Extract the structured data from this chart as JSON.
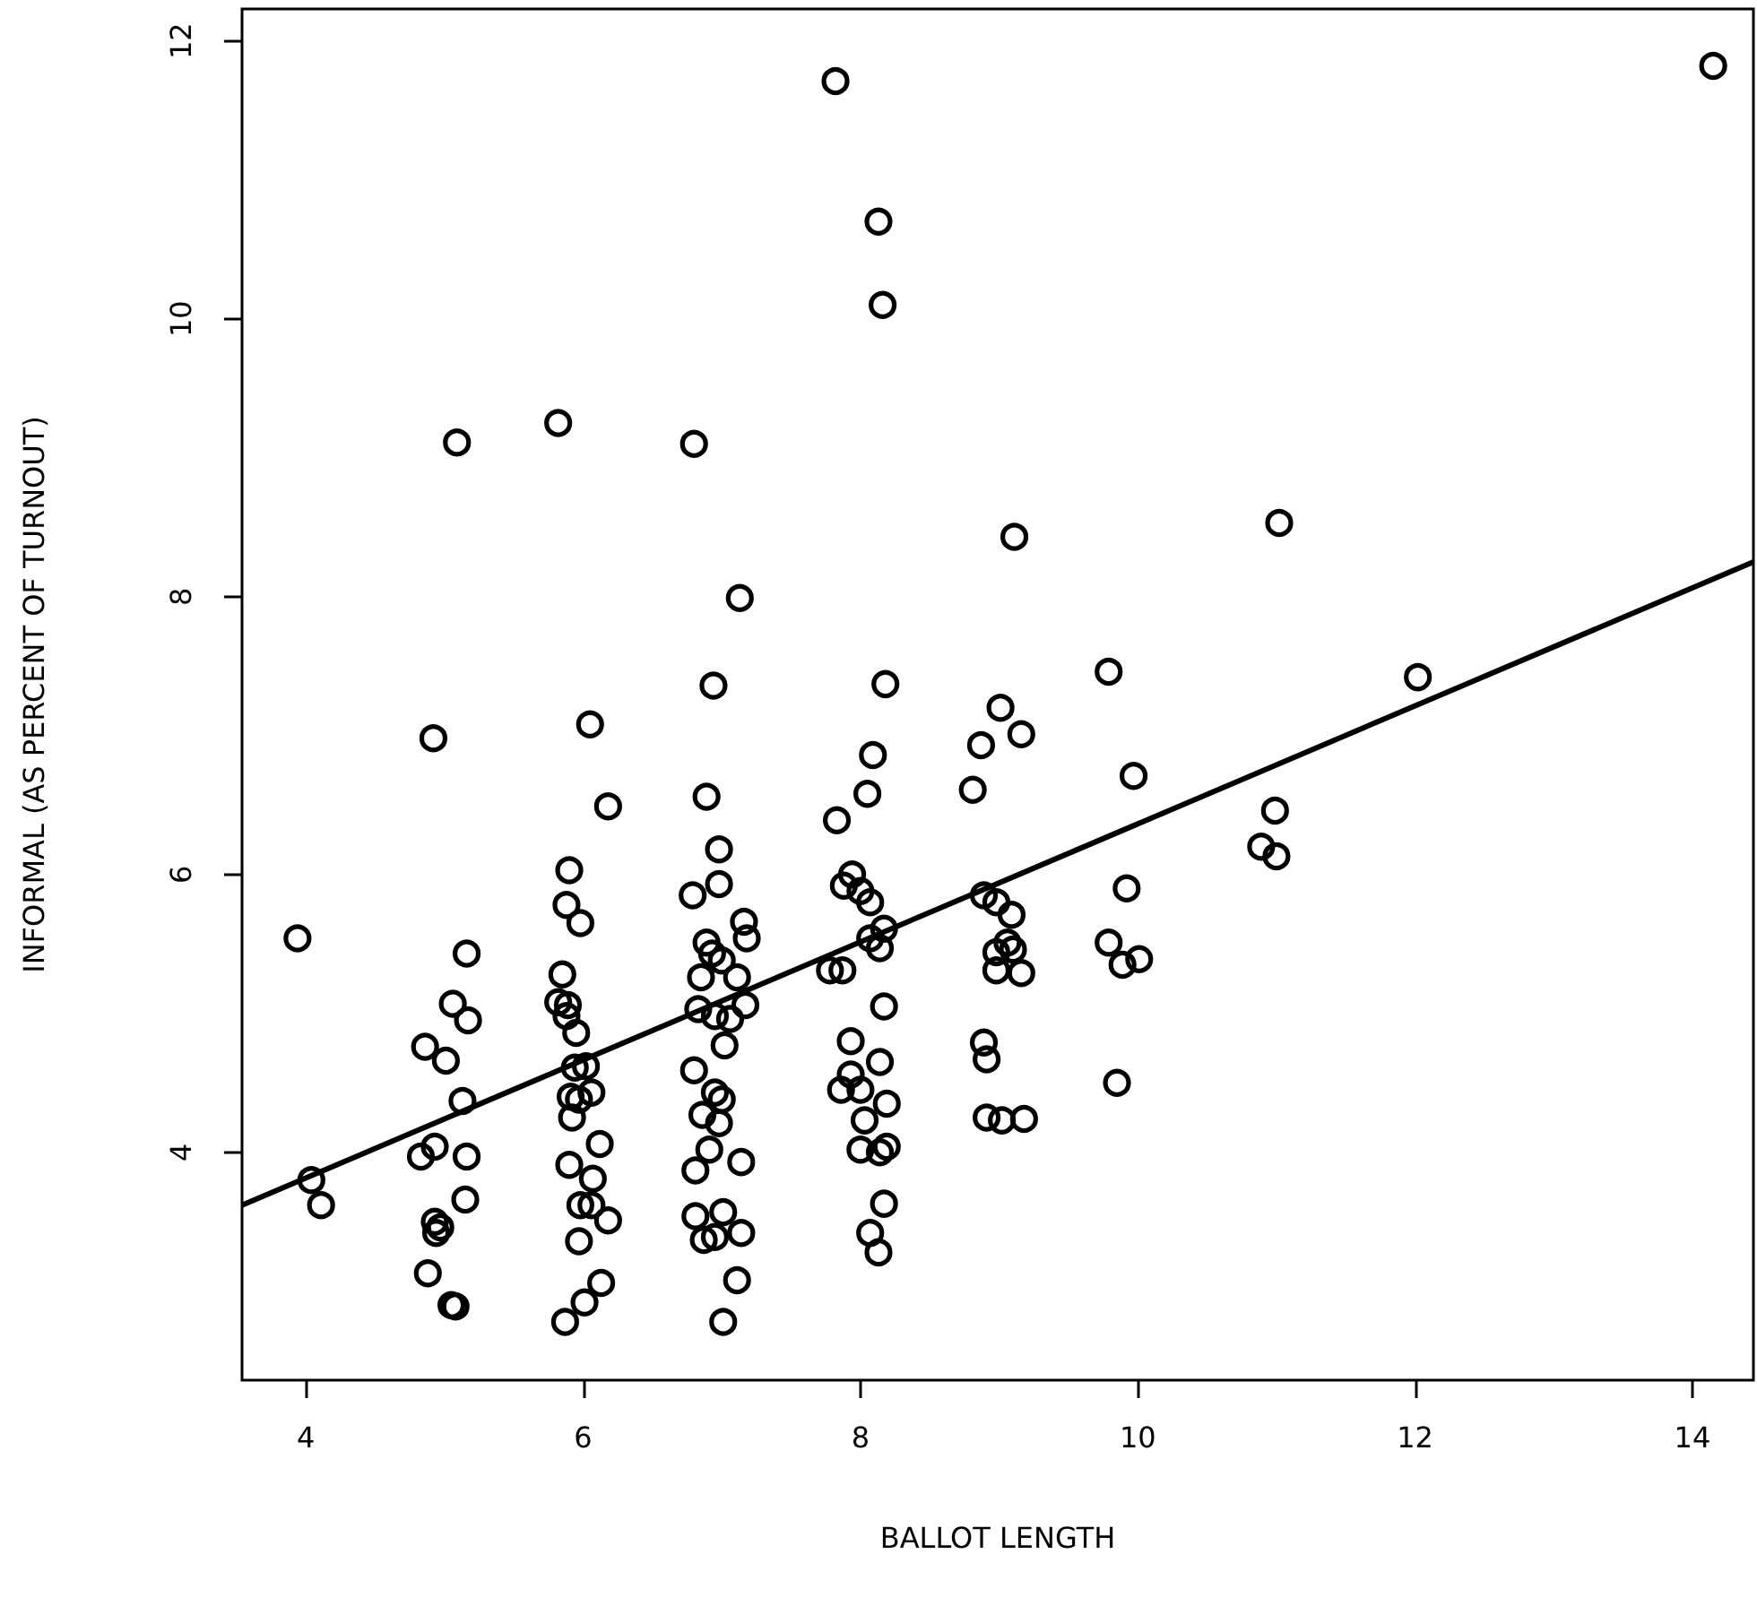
{
  "chart_data": {
    "type": "scatter",
    "xlabel": "BALLOT LENGTH",
    "ylabel": "INFORMAL (AS PERCENT OF TURNOUT)",
    "xlim": [
      3.54,
      14.44
    ],
    "ylim": [
      2.36,
      12.23
    ],
    "xticks": [
      4,
      6,
      8,
      10,
      12,
      14
    ],
    "yticks": [
      4,
      6,
      8,
      10,
      12
    ],
    "grid": false,
    "marker": "circle",
    "series": [
      {
        "color": "#000000",
        "x": [
          3.94,
          4.04,
          4.11,
          5.16,
          5.06,
          5.17,
          4.86,
          5.01,
          5.13,
          4.93,
          4.83,
          5.16,
          5.15,
          4.93,
          4.94,
          4.97,
          4.88,
          5.05,
          5.08,
          4.92,
          5.09,
          5.82,
          6.05,
          6.18,
          5.9,
          5.88,
          5.98,
          5.85,
          5.82,
          5.89,
          5.88,
          5.95,
          5.94,
          6.02,
          5.91,
          6.06,
          5.97,
          5.92,
          6.12,
          5.9,
          6.07,
          5.98,
          6.06,
          6.18,
          5.97,
          6.13,
          6.01,
          5.87,
          6.8,
          7.13,
          6.94,
          6.89,
          6.98,
          6.98,
          6.79,
          7.16,
          7.18,
          6.89,
          6.93,
          7.0,
          6.85,
          7.11,
          6.83,
          7.17,
          6.95,
          7.06,
          7.02,
          6.8,
          6.95,
          7.0,
          6.86,
          6.98,
          6.91,
          6.81,
          7.14,
          6.81,
          7.01,
          6.87,
          6.95,
          7.14,
          7.11,
          7.01,
          7.82,
          8.13,
          8.16,
          8.18,
          8.09,
          8.05,
          7.83,
          7.94,
          7.88,
          8.0,
          8.07,
          8.17,
          8.07,
          8.14,
          7.78,
          7.87,
          8.17,
          7.93,
          8.14,
          7.93,
          7.86,
          8.0,
          8.19,
          8.03,
          8.0,
          8.14,
          8.19,
          8.17,
          8.07,
          8.13,
          9.11,
          9.01,
          8.87,
          9.16,
          8.81,
          8.89,
          8.98,
          9.09,
          9.06,
          8.98,
          9.1,
          8.98,
          9.16,
          8.89,
          8.91,
          8.91,
          9.02,
          9.18,
          9.79,
          9.97,
          9.92,
          9.79,
          9.89,
          10.01,
          9.85,
          11.02,
          10.99,
          10.89,
          11.0,
          12.02,
          14.15
        ],
        "values": [
          5.54,
          3.8,
          3.62,
          5.43,
          5.07,
          4.95,
          4.76,
          4.66,
          4.37,
          4.04,
          3.97,
          3.97,
          3.66,
          3.5,
          3.42,
          3.46,
          3.13,
          2.9,
          2.89,
          6.98,
          9.11,
          9.25,
          7.08,
          6.49,
          6.03,
          5.78,
          5.65,
          5.28,
          5.08,
          5.06,
          4.98,
          4.86,
          4.61,
          4.62,
          4.4,
          4.43,
          4.38,
          4.25,
          4.06,
          3.91,
          3.81,
          3.62,
          3.62,
          3.51,
          3.36,
          3.06,
          2.92,
          2.78,
          9.1,
          7.99,
          7.36,
          6.56,
          6.18,
          5.93,
          5.85,
          5.66,
          5.54,
          5.51,
          5.43,
          5.38,
          5.26,
          5.26,
          5.03,
          5.06,
          4.98,
          4.96,
          4.77,
          4.59,
          4.43,
          4.38,
          4.27,
          4.21,
          4.02,
          3.87,
          3.93,
          3.54,
          3.57,
          3.37,
          3.39,
          3.42,
          3.08,
          2.78,
          11.71,
          10.7,
          10.1,
          7.37,
          6.86,
          6.58,
          6.39,
          6.0,
          5.92,
          5.88,
          5.8,
          5.61,
          5.54,
          5.47,
          5.31,
          5.31,
          5.05,
          4.8,
          4.65,
          4.56,
          4.45,
          4.45,
          4.35,
          4.23,
          4.02,
          4.0,
          4.04,
          3.63,
          3.42,
          3.28,
          8.43,
          7.2,
          6.93,
          7.01,
          6.61,
          5.85,
          5.8,
          5.71,
          5.51,
          5.44,
          5.46,
          5.31,
          5.29,
          4.79,
          4.67,
          4.25,
          4.23,
          4.24,
          7.46,
          6.71,
          5.9,
          5.51,
          5.35,
          5.39,
          4.5,
          8.53,
          6.46,
          6.2,
          6.13,
          7.42,
          11.82
        ]
      },
      {
        "type": "line",
        "color": "#000000",
        "marker": "none",
        "line_style": "solid",
        "x": [
          3.54,
          14.44
        ],
        "values": [
          3.62,
          8.25
        ]
      }
    ]
  }
}
